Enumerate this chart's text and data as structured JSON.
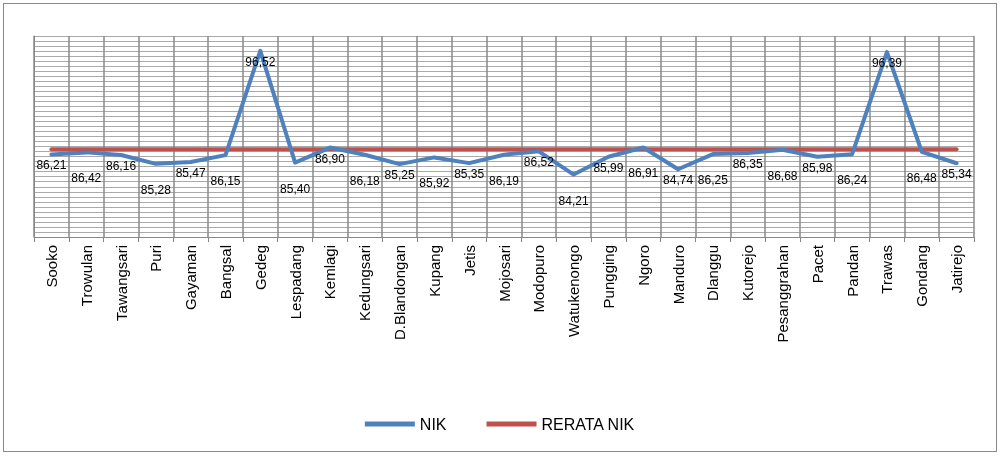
{
  "chart_data": {
    "type": "line",
    "categories": [
      "Sooko",
      "Trowulan",
      "Tawangsari",
      "Puri",
      "Gayaman",
      "Bangsal",
      "Gedeg",
      "Lespadang",
      "Kemlagi",
      "Kedungsari",
      "D.Blandongan",
      "Kupang",
      "Jetis",
      "Mojosari",
      "Modopuro",
      "Watukenongo",
      "Pungging",
      "Ngoro",
      "Manduro",
      "Dlanggu",
      "Kutorejo",
      "Pesanggrahan",
      "Pacet",
      "Pandan",
      "Trawas",
      "Gondang",
      "Jatirejo"
    ],
    "series": [
      {
        "name": "NIK",
        "color": "#4f81bd",
        "values": [
          86.21,
          86.42,
          86.16,
          85.28,
          85.47,
          86.15,
          96.52,
          85.4,
          86.9,
          86.18,
          85.25,
          85.92,
          85.35,
          86.19,
          86.52,
          84.21,
          85.99,
          86.91,
          84.74,
          86.25,
          86.35,
          86.68,
          85.98,
          86.24,
          96.39,
          86.48,
          85.34
        ],
        "value_labels": [
          "86,21",
          "86,42",
          "86,16",
          "85,28",
          "85,47",
          "86,15",
          "96,52",
          "85,40",
          "86,90",
          "86,18",
          "85,25",
          "85,92",
          "85,35",
          "86,19",
          "86,52",
          "84,21",
          "85,99",
          "86,91",
          "84,74",
          "86,25",
          "86,35",
          "86,68",
          "85,98",
          "86,24",
          "96,39",
          "86,48",
          "85,34"
        ]
      },
      {
        "name": "RERATA NIK",
        "color": "#c0504d",
        "values": [
          86.72,
          86.72,
          86.72,
          86.72,
          86.72,
          86.72,
          86.72,
          86.72,
          86.72,
          86.72,
          86.72,
          86.72,
          86.72,
          86.72,
          86.72,
          86.72,
          86.72,
          86.72,
          86.72,
          86.72,
          86.72,
          86.72,
          86.72,
          86.72,
          86.72,
          86.72,
          86.72
        ]
      }
    ],
    "ylim": [
      78,
      98
    ],
    "yticks": [
      {
        "value": 78,
        "label": null
      },
      {
        "value": 78.5,
        "label": null
      },
      {
        "value": 79,
        "label": null
      },
      {
        "value": 79.5,
        "label": null
      },
      {
        "value": 80,
        "label": null
      },
      {
        "value": 80.5,
        "label": null
      },
      {
        "value": 81,
        "label": null
      },
      {
        "value": 81.5,
        "label": null
      },
      {
        "value": 82,
        "label": null
      },
      {
        "value": 82.5,
        "label": null
      },
      {
        "value": 83,
        "label": null
      },
      {
        "value": 83.5,
        "label": null
      },
      {
        "value": 84,
        "label": null
      },
      {
        "value": 84.5,
        "label": null
      },
      {
        "value": 85,
        "label": null
      },
      {
        "value": 85.5,
        "label": null
      },
      {
        "value": 86,
        "label": null
      },
      {
        "value": 86.5,
        "label": null
      },
      {
        "value": 87,
        "label": null
      },
      {
        "value": 87.5,
        "label": null
      },
      {
        "value": 88,
        "label": null
      },
      {
        "value": 88.5,
        "label": null
      },
      {
        "value": 89,
        "label": null
      },
      {
        "value": 89.5,
        "label": null
      },
      {
        "value": 90,
        "label": null
      },
      {
        "value": 90.5,
        "label": null
      },
      {
        "value": 91,
        "label": null
      },
      {
        "value": 91.5,
        "label": null
      },
      {
        "value": 92,
        "label": null
      },
      {
        "value": 92.5,
        "label": null
      },
      {
        "value": 93,
        "label": null
      },
      {
        "value": 93.5,
        "label": null
      },
      {
        "value": 94,
        "label": null
      },
      {
        "value": 94.5,
        "label": null
      },
      {
        "value": 95,
        "label": null
      },
      {
        "value": 95.5,
        "label": null
      },
      {
        "value": 96,
        "label": null
      },
      {
        "value": 96.5,
        "label": null
      },
      {
        "value": 97,
        "label": null
      },
      {
        "value": 97.5,
        "label": null
      },
      {
        "value": 98,
        "label": null
      }
    ],
    "tick_labels": "x",
    "grid": true,
    "legend": "bottom",
    "marker": "none",
    "line_style": "solid"
  }
}
